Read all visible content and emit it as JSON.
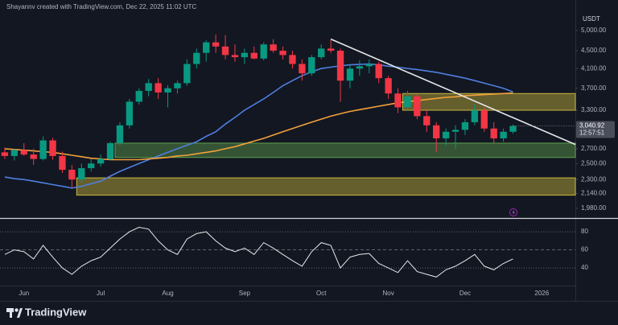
{
  "header": {
    "credit": "Shayannv created with TradingView.com, Dec 22, 2025 11:02 UTC",
    "currency": "USDT",
    "brand": "TradingView"
  },
  "chart_data": {
    "type": "candlestick",
    "log_scale": true,
    "ylim": [
      1890,
      5620
    ],
    "yticks": [
      {
        "value": 5000,
        "label": "5,000.00"
      },
      {
        "value": 4500,
        "label": "4,500.00"
      },
      {
        "value": 4100,
        "label": "4,100.00"
      },
      {
        "value": 3700,
        "label": "3,700.00"
      },
      {
        "value": 3300,
        "label": "3,300.00"
      },
      {
        "value": 2700,
        "label": "2,700.00"
      },
      {
        "value": 2500,
        "label": "2,500.00"
      },
      {
        "value": 2300,
        "label": "2,300.00"
      },
      {
        "value": 2140,
        "label": "2,140.00"
      },
      {
        "value": 1980,
        "label": "1,980.00"
      }
    ],
    "categories": [
      null,
      null,
      "Jun",
      null,
      null,
      null,
      null,
      null,
      null,
      null,
      "Jul",
      null,
      null,
      null,
      null,
      null,
      null,
      "Aug",
      null,
      null,
      null,
      null,
      null,
      null,
      null,
      "Sep",
      null,
      null,
      null,
      null,
      null,
      null,
      null,
      "Oct",
      null,
      null,
      null,
      null,
      null,
      null,
      "Nov",
      null,
      null,
      null,
      null,
      null,
      null,
      null,
      "Dec",
      null,
      null,
      null,
      null,
      null,
      null,
      null,
      "2026",
      null,
      null,
      null
    ],
    "up_color": "#089981",
    "down_color": "#f23645",
    "open": [
      2650,
      2600,
      2680,
      2620,
      2560,
      2820,
      2600,
      2420,
      2300,
      2440,
      2500,
      2560,
      2780,
      3050,
      3450,
      3650,
      3800,
      3620,
      3700,
      3800,
      4200,
      4450,
      4700,
      4600,
      4400,
      4350,
      4450,
      4320,
      4650,
      4500,
      4400,
      4200,
      4000,
      4350,
      4550,
      4500,
      3850,
      4100,
      4150,
      4200,
      3900,
      3600,
      3350,
      3550,
      3200,
      3050,
      2850,
      2950,
      2980,
      3100,
      3300,
      3000,
      2850,
      2950,
      null,
      null,
      null,
      null,
      null,
      null
    ],
    "high": [
      2720,
      2700,
      2780,
      2700,
      2880,
      2860,
      2660,
      2480,
      2500,
      2560,
      2620,
      2800,
      3100,
      3500,
      3700,
      3880,
      3900,
      3760,
      3850,
      4300,
      4550,
      4750,
      4900,
      4880,
      4650,
      4550,
      4600,
      4700,
      4780,
      4600,
      4500,
      4300,
      4400,
      4650,
      4780,
      4550,
      4200,
      4280,
      4300,
      4250,
      3950,
      3700,
      3650,
      3580,
      3300,
      3100,
      3000,
      3050,
      3150,
      3400,
      3350,
      3100,
      3000,
      3060,
      null,
      null,
      null,
      null,
      null,
      null
    ],
    "low": [
      2560,
      2540,
      2600,
      2480,
      2540,
      2550,
      2380,
      2200,
      2260,
      2400,
      2460,
      2540,
      2750,
      3000,
      3400,
      3550,
      3500,
      3350,
      3600,
      3750,
      4100,
      4250,
      4450,
      4300,
      4250,
      4200,
      4300,
      4280,
      4450,
      4300,
      4100,
      3850,
      3950,
      4300,
      4450,
      3450,
      3700,
      3950,
      4000,
      3800,
      3500,
      3250,
      3300,
      3150,
      2950,
      2650,
      2750,
      2700,
      2900,
      3050,
      2950,
      2780,
      2800,
      2920,
      null,
      null,
      null,
      null,
      null,
      null
    ],
    "close": [
      2600,
      2680,
      2620,
      2560,
      2820,
      2600,
      2420,
      2300,
      2440,
      2500,
      2560,
      2780,
      3050,
      3450,
      3650,
      3800,
      3620,
      3700,
      3800,
      4200,
      4450,
      4700,
      4600,
      4400,
      4350,
      4450,
      4320,
      4650,
      4500,
      4400,
      4200,
      4000,
      4350,
      4550,
      4500,
      3850,
      4100,
      4150,
      4200,
      3900,
      3600,
      3350,
      3550,
      3200,
      3050,
      2850,
      2950,
      2980,
      3100,
      3300,
      3000,
      2850,
      2950,
      3040.92,
      null,
      null,
      null,
      null,
      null,
      null
    ],
    "last_price_label": "3,040.92",
    "countdown": "12:57:51",
    "moving_averages": [
      {
        "color": "#4f7fe0",
        "values": [
          2330,
          2310,
          2300,
          2280,
          2260,
          2240,
          2220,
          2200,
          2220,
          2250,
          2280,
          2340,
          2400,
          2450,
          2500,
          2550,
          2600,
          2650,
          2700,
          2750,
          2800,
          2880,
          2950,
          3070,
          3180,
          3300,
          3400,
          3500,
          3620,
          3750,
          3850,
          3950,
          4030,
          4100,
          4130,
          4160,
          4180,
          4190,
          4200,
          4180,
          4150,
          4130,
          4100,
          4080,
          4050,
          4020,
          3980,
          3940,
          3900,
          3850,
          3800,
          3750,
          3700,
          3630,
          null,
          null,
          null,
          null,
          null,
          null
        ]
      },
      {
        "color": "#f2a13b",
        "values": [
          2700,
          2690,
          2680,
          2670,
          2660,
          2650,
          2630,
          2610,
          2590,
          2570,
          2560,
          2550,
          2550,
          2550,
          2550,
          2560,
          2570,
          2580,
          2600,
          2610,
          2630,
          2650,
          2670,
          2700,
          2730,
          2770,
          2810,
          2850,
          2900,
          2950,
          3000,
          3050,
          3100,
          3150,
          3200,
          3240,
          3280,
          3310,
          3340,
          3370,
          3400,
          3430,
          3450,
          3470,
          3490,
          3510,
          3530,
          3540,
          3560,
          3570,
          3580,
          3590,
          3600,
          3610,
          null,
          null,
          null,
          null,
          null,
          null
        ]
      }
    ],
    "zones": [
      {
        "low": 3300,
        "high": 3600,
        "from_index": 42,
        "color": "#c8b83c"
      },
      {
        "low": 2580,
        "high": 2780,
        "from_index": 12,
        "color": "#5fa04e"
      },
      {
        "low": 2120,
        "high": 2320,
        "from_index": 8,
        "color": "#c8b83c"
      }
    ],
    "trendline": {
      "start_index": 34,
      "start_value": 4780,
      "end_index": 59.5,
      "end_value": 2760,
      "color": "#e6e6e6"
    },
    "rsi": {
      "color": "#e8e8e8",
      "ylim": [
        25,
        89
      ],
      "yticks": [
        80,
        60,
        40
      ],
      "values": [
        55,
        60,
        58,
        50,
        65,
        52,
        40,
        33,
        42,
        48,
        52,
        62,
        72,
        80,
        85,
        83,
        70,
        60,
        55,
        72,
        78,
        80,
        70,
        62,
        58,
        62,
        55,
        68,
        62,
        55,
        48,
        42,
        58,
        68,
        65,
        40,
        52,
        55,
        56,
        45,
        40,
        35,
        48,
        36,
        33,
        30,
        38,
        42,
        48,
        55,
        42,
        38,
        45,
        50,
        null,
        null,
        null,
        null,
        null,
        null
      ]
    }
  }
}
